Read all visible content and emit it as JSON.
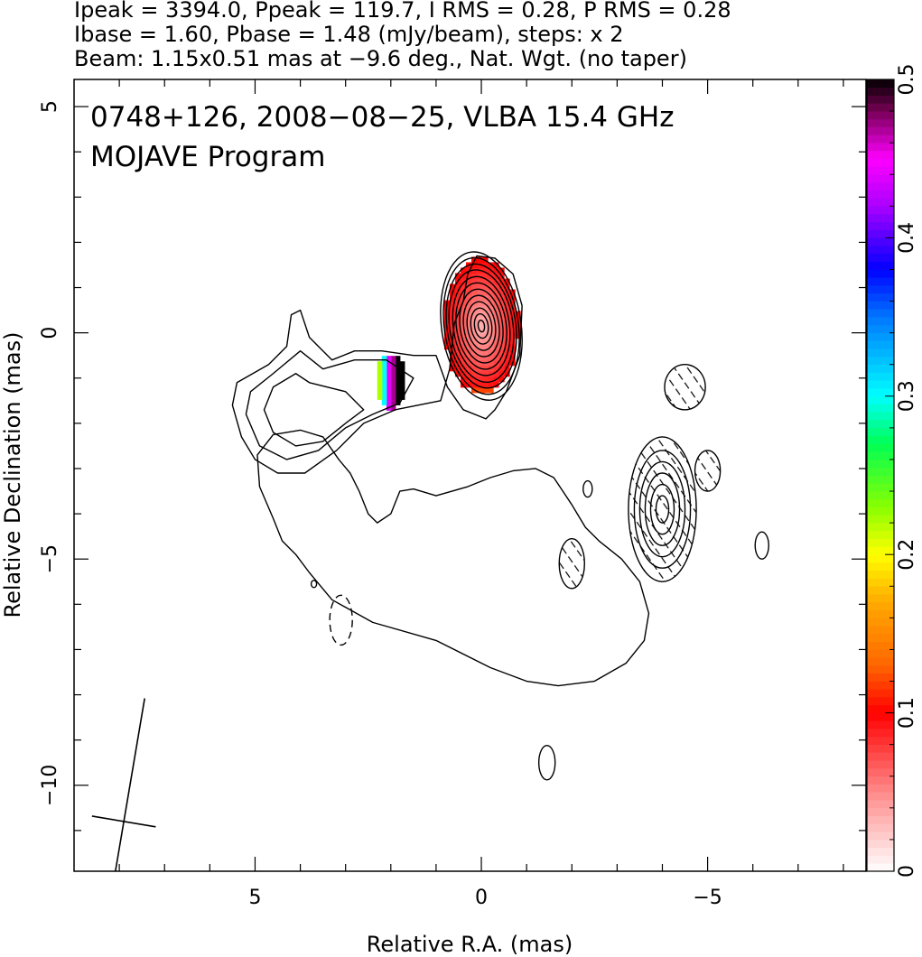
{
  "chart_data": {
    "type": "heatmap",
    "header_lines": [
      "Ipeak = 3394.0, Ppeak = 119.7, I RMS = 0.28, P RMS = 0.28",
      "Ibase = 1.60, Pbase = 1.48 (mJy/beam), steps: x 2",
      "Beam: 1.15x0.51 mas at −9.6 deg., Nat. Wgt. (no taper)"
    ],
    "annotation_lines": [
      "0748+126, 2008−08−25, VLBA 15.4 GHz",
      "MOJAVE Program"
    ],
    "xlabel": "Relative R.A. (mas)",
    "ylabel": "Relative Declination (mas)",
    "xlim": [
      9.0,
      -8.5
    ],
    "ylim": [
      -11.9,
      5.6
    ],
    "x_ticks": [
      {
        "value": 5,
        "label": "5"
      },
      {
        "value": 0,
        "label": "0"
      },
      {
        "value": -5,
        "label": "−5"
      }
    ],
    "y_ticks": [
      {
        "value": 5,
        "label": "5"
      },
      {
        "value": 0,
        "label": "0"
      },
      {
        "value": -5,
        "label": "−5"
      },
      {
        "value": -10,
        "label": "−10"
      }
    ],
    "colorbar": {
      "range": [
        0,
        0.5
      ],
      "ticks": [
        {
          "value": 0,
          "label": "0"
        },
        {
          "value": 0.1,
          "label": "0.1"
        },
        {
          "value": 0.2,
          "label": "0.2"
        },
        {
          "value": 0.3,
          "label": "0.3"
        },
        {
          "value": 0.4,
          "label": "0.4"
        },
        {
          "value": 0.5,
          "label": "0.5"
        }
      ],
      "stops": [
        {
          "v": 0.0,
          "c": "#ffffff"
        },
        {
          "v": 0.05,
          "c": "#ff8a8a"
        },
        {
          "v": 0.1,
          "c": "#ff0000"
        },
        {
          "v": 0.13,
          "c": "#ff6600"
        },
        {
          "v": 0.17,
          "c": "#ffaa00"
        },
        {
          "v": 0.2,
          "c": "#ffff00"
        },
        {
          "v": 0.23,
          "c": "#88ff00"
        },
        {
          "v": 0.27,
          "c": "#00ff55"
        },
        {
          "v": 0.3,
          "c": "#00ffff"
        },
        {
          "v": 0.35,
          "c": "#0077ff"
        },
        {
          "v": 0.38,
          "c": "#0000ff"
        },
        {
          "v": 0.42,
          "c": "#aa00ff"
        },
        {
          "v": 0.45,
          "c": "#ff00ff"
        },
        {
          "v": 0.48,
          "c": "#770055"
        },
        {
          "v": 0.5,
          "c": "#000000"
        }
      ]
    },
    "beam": {
      "major_mas": 1.15,
      "minor_mas": 0.51,
      "pa_deg": -9.6,
      "center": [
        7.9,
        -10.8
      ]
    },
    "core_component": {
      "center": [
        0.0,
        0.15
      ],
      "contour_semi_axes": [
        [
          0.88,
          1.65
        ],
        [
          0.82,
          1.52
        ],
        [
          0.76,
          1.38
        ],
        [
          0.7,
          1.25
        ],
        [
          0.62,
          1.1
        ],
        [
          0.55,
          0.96
        ],
        [
          0.47,
          0.82
        ],
        [
          0.39,
          0.68
        ],
        [
          0.31,
          0.54
        ],
        [
          0.23,
          0.4
        ],
        [
          0.15,
          0.27
        ],
        [
          0.07,
          0.13
        ]
      ],
      "fractional_pol_map": {
        "x_range": [
          0.8,
          -0.8
        ],
        "y_range": [
          -1.5,
          1.65
        ],
        "value_near_core": 0.03,
        "value_at_edge": 0.1,
        "southern_band": [
          0.12,
          0.17,
          0.21,
          0.28,
          0.5
        ]
      }
    },
    "nw_knot_pol_patch": {
      "x_range": [
        2.3,
        1.7
      ],
      "y_range": [
        -1.65,
        -0.5
      ],
      "values_west_to_east": [
        0.5,
        0.5,
        0.47,
        0.44,
        0.3,
        0.22
      ]
    },
    "sw_component": {
      "center": [
        -4.0,
        -3.9
      ],
      "contour_semi_axes": [
        [
          0.75,
          1.6
        ],
        [
          0.62,
          1.3
        ],
        [
          0.5,
          1.05
        ],
        [
          0.38,
          0.8
        ],
        [
          0.26,
          0.55
        ],
        [
          0.14,
          0.3
        ]
      ]
    },
    "isolated_features": [
      {
        "center": [
          -4.5,
          -1.2
        ],
        "semi_axes": [
          0.45,
          0.5
        ],
        "hatched": true
      },
      {
        "center": [
          -5.0,
          -3.05
        ],
        "semi_axes": [
          0.28,
          0.45
        ],
        "hatched": true
      },
      {
        "center": [
          -2.0,
          -5.1
        ],
        "semi_axes": [
          0.28,
          0.55
        ],
        "hatched": true
      },
      {
        "center": [
          -6.2,
          -4.7
        ],
        "semi_axes": [
          0.15,
          0.3
        ],
        "hatched": false
      },
      {
        "center": [
          -1.45,
          -9.5
        ],
        "semi_axes": [
          0.18,
          0.38
        ],
        "hatched": false
      },
      {
        "center": [
          3.7,
          -5.55
        ],
        "semi_axes": [
          0.06,
          0.08
        ],
        "hatched": false
      },
      {
        "center": [
          -2.35,
          -3.45
        ],
        "semi_axes": [
          0.1,
          0.18
        ],
        "hatched": false
      },
      {
        "center": [
          3.1,
          -6.35
        ],
        "semi_axes": [
          0.25,
          0.55
        ],
        "hatched": false,
        "dashed": true
      }
    ],
    "extended_contours": [
      [
        [
          3.3,
          -0.6
        ],
        [
          3.8,
          -0.1
        ],
        [
          4.0,
          0.5
        ],
        [
          4.2,
          0.4
        ],
        [
          4.3,
          -0.3
        ],
        [
          4.7,
          -0.7
        ],
        [
          5.4,
          -1.1
        ],
        [
          5.5,
          -1.6
        ],
        [
          5.3,
          -2.3
        ],
        [
          5.0,
          -2.8
        ],
        [
          4.5,
          -3.1
        ],
        [
          3.9,
          -3.1
        ],
        [
          3.2,
          -2.6
        ],
        [
          2.6,
          -2.0
        ],
        [
          1.9,
          -1.7
        ],
        [
          1.4,
          -1.6
        ],
        [
          0.9,
          -1.5
        ],
        [
          0.7,
          -0.8
        ],
        [
          0.6,
          0.2
        ],
        [
          0.4,
          0.7
        ],
        [
          0.3,
          1.3
        ],
        [
          0.1,
          1.7
        ],
        [
          -0.3,
          1.65
        ],
        [
          -0.7,
          1.3
        ],
        [
          -0.9,
          0.6
        ],
        [
          -0.85,
          -0.5
        ],
        [
          -0.55,
          -1.3
        ],
        [
          -0.3,
          -1.7
        ],
        [
          -0.1,
          -1.9
        ],
        [
          0.4,
          -1.7
        ],
        [
          0.75,
          -1.2
        ],
        [
          1.0,
          -0.5
        ],
        [
          1.5,
          -0.5
        ],
        [
          2.2,
          -0.4
        ],
        [
          2.8,
          -0.4
        ]
      ],
      [
        [
          3.5,
          -0.8
        ],
        [
          4.0,
          -0.4
        ],
        [
          4.6,
          -0.9
        ],
        [
          5.1,
          -1.3
        ],
        [
          5.2,
          -1.8
        ],
        [
          4.9,
          -2.5
        ],
        [
          4.3,
          -2.8
        ],
        [
          3.6,
          -2.6
        ],
        [
          3.0,
          -2.1
        ],
        [
          2.4,
          -1.8
        ],
        [
          1.8,
          -1.55
        ],
        [
          1.5,
          -1.0
        ],
        [
          2.1,
          -0.6
        ],
        [
          2.8,
          -0.6
        ]
      ],
      [
        [
          3.8,
          -1.1
        ],
        [
          4.1,
          -0.9
        ],
        [
          4.6,
          -1.2
        ],
        [
          4.8,
          -1.7
        ],
        [
          4.6,
          -2.2
        ],
        [
          4.1,
          -2.5
        ],
        [
          3.5,
          -2.4
        ],
        [
          3.0,
          -2.0
        ],
        [
          2.6,
          -1.7
        ],
        [
          3.0,
          -1.3
        ]
      ],
      [
        [
          1.0,
          -3.6
        ],
        [
          1.5,
          -3.45
        ],
        [
          1.8,
          -3.5
        ],
        [
          2.0,
          -4.0
        ],
        [
          2.3,
          -4.2
        ],
        [
          2.5,
          -4.0
        ],
        [
          2.7,
          -3.5
        ],
        [
          2.9,
          -3.1
        ],
        [
          3.15,
          -2.8
        ],
        [
          3.5,
          -2.3
        ],
        [
          4.0,
          -2.15
        ],
        [
          4.6,
          -2.25
        ],
        [
          4.95,
          -2.7
        ],
        [
          4.9,
          -3.4
        ],
        [
          4.6,
          -4.1
        ],
        [
          4.4,
          -4.6
        ],
        [
          4.1,
          -4.9
        ],
        [
          3.8,
          -5.3
        ],
        [
          3.3,
          -5.9
        ],
        [
          2.4,
          -6.4
        ],
        [
          1.0,
          -6.8
        ],
        [
          -0.2,
          -7.4
        ],
        [
          -1.0,
          -7.7
        ],
        [
          -1.7,
          -7.8
        ],
        [
          -2.5,
          -7.7
        ],
        [
          -3.2,
          -7.3
        ],
        [
          -3.6,
          -6.8
        ],
        [
          -3.7,
          -6.2
        ],
        [
          -3.5,
          -5.5
        ],
        [
          -3.1,
          -5.0
        ],
        [
          -2.6,
          -4.6
        ],
        [
          -2.3,
          -4.3
        ],
        [
          -2.0,
          -3.8
        ],
        [
          -1.8,
          -3.5
        ],
        [
          -1.6,
          -3.2
        ],
        [
          -1.2,
          -3.0
        ],
        [
          -0.7,
          -3.05
        ],
        [
          -0.2,
          -3.2
        ],
        [
          0.3,
          -3.4
        ]
      ]
    ]
  }
}
